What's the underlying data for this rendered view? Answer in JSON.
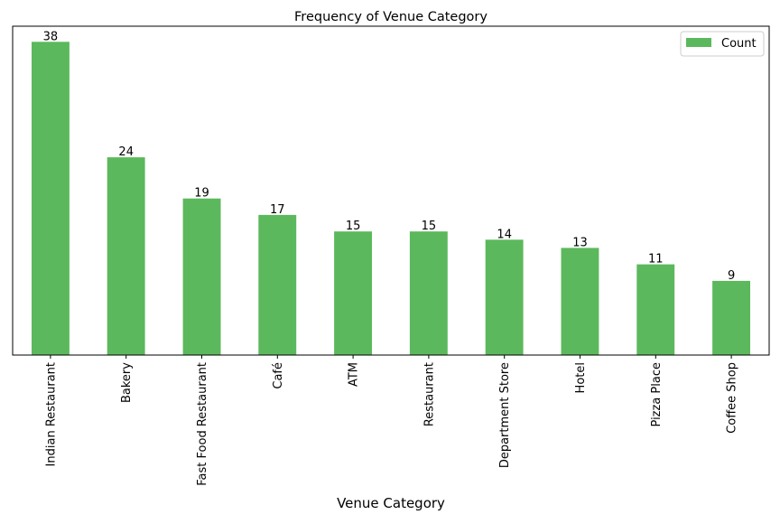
{
  "chart_data": {
    "type": "bar",
    "title": "Frequency of Venue Category",
    "xlabel": "Venue Category",
    "ylabel": "",
    "categories": [
      "Indian Restaurant",
      "Bakery",
      "Fast Food Restaurant",
      "Café",
      "ATM",
      "Restaurant",
      "Department Store",
      "Hotel",
      "Pizza Place",
      "Coffee Shop"
    ],
    "series": [
      {
        "name": "Count",
        "values": [
          38,
          24,
          19,
          17,
          15,
          15,
          14,
          13,
          11,
          9
        ],
        "color": "#5cb85c"
      }
    ],
    "ylim": [
      0,
      39.9
    ],
    "yaxis_visible": false,
    "grid": false,
    "legend": "top-right",
    "data_labels": true
  }
}
